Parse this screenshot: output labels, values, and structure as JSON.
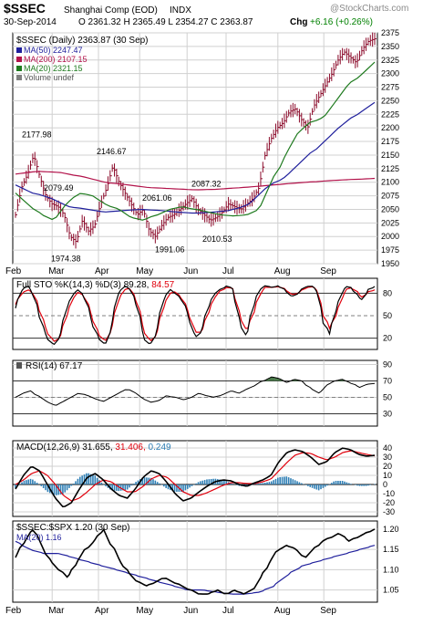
{
  "header": {
    "symbol": "$SSEC",
    "name": "Shanghai Comp (EOD)",
    "exchange": "INDX",
    "date": "30-Sep-2014",
    "ohlc": "O 2361.32  H 2365.49  L 2354.27  C 2363.87",
    "chg_label": "Chg",
    "chg_value": "+6.16 (+0.26%)",
    "chg_color": "#008000",
    "watermark": "@StockCharts.com"
  },
  "colors": {
    "price_bar": "#8b0a2a",
    "ma50": "#1f1f9c",
    "ma200": "#b2124a",
    "ma20": "#1e7a1e",
    "sto_k": "#000000",
    "sto_d": "#e0000c",
    "rsi": "#000000",
    "rsi_fill": "#4a7a4a",
    "macd": "#000000",
    "signal": "#e0000c",
    "hist": "#2f7fb5",
    "ratio": "#000000",
    "ratio_ma": "#1f1f9c",
    "grid": "#d0d0d0",
    "ref": "#808080"
  },
  "chart_data": [
    {
      "type": "line",
      "title": "$SSEC (Daily) 2363.87 (30 Sep)",
      "legend": [
        {
          "label": "MA(50) 2247.47",
          "color": "#1f1f9c"
        },
        {
          "label": "MA(200) 2107.15",
          "color": "#b2124a"
        },
        {
          "label": "MA(20) 2321.15",
          "color": "#1e7a1e"
        },
        {
          "label": "Volume undef",
          "color": "#808080"
        }
      ],
      "x_labels": [
        "Feb",
        "Mar",
        "Apr",
        "May",
        "Jun",
        "Jul",
        "Aug",
        "Sep"
      ],
      "ylim": [
        1950,
        2375
      ],
      "yticks": [
        2375,
        2350,
        2325,
        2300,
        2275,
        2250,
        2225,
        2200,
        2175,
        2150,
        2125,
        2100,
        2075,
        2050,
        2025,
        2000,
        1975,
        1950
      ],
      "price_annotations": [
        {
          "text": "2177.98",
          "value": 2177.98
        },
        {
          "text": "2079.49",
          "value": 2079.49
        },
        {
          "text": "1974.38",
          "value": 1974.38
        },
        {
          "text": "2146.67",
          "value": 2146.67
        },
        {
          "text": "2061.06",
          "value": 2061.06
        },
        {
          "text": "1991.06",
          "value": 1991.06
        },
        {
          "text": "2087.32",
          "value": 2087.32
        },
        {
          "text": "2010.53",
          "value": 2010.53
        }
      ],
      "close_keypoints": [
        2040,
        2090,
        2115,
        2150,
        2110,
        2075,
        2060,
        2055,
        2040,
        2000,
        1990,
        2030,
        2010,
        2020,
        2060,
        2090,
        2130,
        2100,
        2080,
        2060,
        2040,
        2050,
        2010,
        2000,
        2020,
        2035,
        2040,
        2050,
        2060,
        2070,
        2050,
        2040,
        2030,
        2035,
        2045,
        2060,
        2055,
        2050,
        2060,
        2070,
        2090,
        2150,
        2180,
        2200,
        2210,
        2230,
        2235,
        2215,
        2200,
        2240,
        2260,
        2280,
        2300,
        2325,
        2340,
        2330,
        2320,
        2345,
        2360,
        2364
      ],
      "ma20_keypoints": [
        2080,
        2060,
        2040,
        2030,
        2060,
        2080,
        2075,
        2060,
        2050,
        2035,
        2030,
        2040,
        2050,
        2055,
        2050,
        2045,
        2040,
        2038,
        2040,
        2050,
        2100,
        2150,
        2190,
        2210,
        2220,
        2250,
        2280,
        2300,
        2321
      ],
      "ma50_keypoints": [
        2095,
        2080,
        2070,
        2055,
        2050,
        2045,
        2048,
        2050,
        2048,
        2045,
        2043,
        2045,
        2048,
        2060,
        2090,
        2110,
        2140,
        2170,
        2200,
        2225,
        2247
      ],
      "ma200_keypoints": [
        2115,
        2120,
        2118,
        2110,
        2100,
        2095,
        2090,
        2088,
        2086,
        2087,
        2090,
        2093,
        2097,
        2100,
        2103,
        2105,
        2107
      ]
    },
    {
      "type": "line",
      "title": "Full STO %K(14,3) %D(3) 89.28, 84.57",
      "k_value": "89.28",
      "d_value": "84.57",
      "ylim": [
        5,
        100
      ],
      "yticks": [
        80,
        50,
        20
      ],
      "k_keypoints": [
        60,
        85,
        90,
        75,
        40,
        20,
        10,
        25,
        60,
        80,
        85,
        70,
        40,
        20,
        10,
        40,
        80,
        90,
        85,
        60,
        20,
        10,
        30,
        70,
        85,
        80,
        70,
        50,
        20,
        30,
        60,
        80,
        85,
        90,
        85,
        40,
        20,
        60,
        85,
        90,
        88,
        90,
        85,
        75,
        80,
        88,
        90,
        85,
        40,
        25,
        60,
        85,
        90,
        80,
        70,
        85,
        89
      ],
      "d_keypoints": [
        65,
        80,
        85,
        78,
        50,
        28,
        15,
        22,
        50,
        75,
        82,
        72,
        48,
        25,
        15,
        35,
        70,
        86,
        86,
        66,
        30,
        15,
        26,
        60,
        80,
        82,
        72,
        55,
        28,
        28,
        52,
        75,
        83,
        88,
        86,
        50,
        28,
        50,
        78,
        88,
        88,
        89,
        86,
        78,
        80,
        86,
        89,
        86,
        50,
        32,
        52,
        78,
        88,
        84,
        74,
        82,
        84.57
      ]
    },
    {
      "type": "line",
      "title": "RSI(14) 67.17",
      "value": "67.17",
      "ylim": [
        15,
        95
      ],
      "yticks": [
        90,
        70,
        50,
        30
      ],
      "rsi_keypoints": [
        50,
        55,
        58,
        50,
        44,
        40,
        45,
        50,
        55,
        52,
        48,
        45,
        50,
        55,
        60,
        55,
        48,
        44,
        46,
        52,
        50,
        47,
        50,
        55,
        52,
        50,
        54,
        58,
        55,
        60,
        64,
        70,
        75,
        73,
        68,
        72,
        70,
        60,
        55,
        65,
        70,
        72,
        68,
        62,
        66,
        67
      ]
    },
    {
      "type": "line",
      "title": "MACD(12,26,9) 31.655, 31.406, 0.249",
      "macd_value": "31.655",
      "signal_value": "31.406",
      "hist_value": "0.249",
      "ylim": [
        -35,
        48
      ],
      "yticks": [
        40,
        30,
        20,
        10,
        0,
        -10,
        -20,
        -30
      ],
      "macd_keypoints": [
        -5,
        10,
        20,
        15,
        0,
        -15,
        -25,
        -20,
        -5,
        8,
        12,
        5,
        -5,
        -12,
        -15,
        -5,
        8,
        15,
        12,
        2,
        -10,
        -18,
        -15,
        -8,
        -2,
        3,
        5,
        4,
        0,
        -2,
        2,
        5,
        10,
        25,
        35,
        38,
        36,
        30,
        22,
        25,
        35,
        40,
        38,
        33,
        31,
        32
      ],
      "signal_keypoints": [
        0,
        5,
        12,
        15,
        10,
        0,
        -12,
        -18,
        -15,
        -8,
        0,
        5,
        3,
        -3,
        -8,
        -8,
        -2,
        6,
        10,
        8,
        0,
        -8,
        -12,
        -12,
        -9,
        -5,
        -1,
        2,
        2,
        1,
        1,
        3,
        6,
        15,
        24,
        32,
        35,
        34,
        30,
        27,
        30,
        35,
        37,
        35,
        33,
        31.4
      ]
    },
    {
      "type": "line",
      "title": "$SSEC:$SPX 1.20 (30 Sep)",
      "legend": [
        {
          "label": "MA(20) 1.16",
          "color": "#1f1f9c"
        }
      ],
      "x_labels": [
        "Feb",
        "Mar",
        "Apr",
        "May",
        "Jun",
        "Jul",
        "Aug",
        "Sep"
      ],
      "ylim": [
        1.02,
        1.22
      ],
      "yticks": [
        1.2,
        1.15,
        1.1,
        1.05
      ],
      "ratio_keypoints": [
        1.13,
        1.17,
        1.2,
        1.16,
        1.12,
        1.1,
        1.08,
        1.12,
        1.15,
        1.17,
        1.2,
        1.16,
        1.12,
        1.09,
        1.07,
        1.06,
        1.07,
        1.08,
        1.07,
        1.06,
        1.05,
        1.04,
        1.04,
        1.05,
        1.04,
        1.05,
        1.04,
        1.05,
        1.08,
        1.12,
        1.15,
        1.16,
        1.15,
        1.13,
        1.15,
        1.17,
        1.18,
        1.19,
        1.17,
        1.18,
        1.19,
        1.2
      ],
      "ratio_ma_keypoints": [
        1.17,
        1.15,
        1.14,
        1.14,
        1.13,
        1.12,
        1.11,
        1.1,
        1.09,
        1.08,
        1.07,
        1.06,
        1.05,
        1.05,
        1.045,
        1.04,
        1.04,
        1.045,
        1.06,
        1.09,
        1.11,
        1.12,
        1.13,
        1.14,
        1.15,
        1.16
      ]
    }
  ]
}
